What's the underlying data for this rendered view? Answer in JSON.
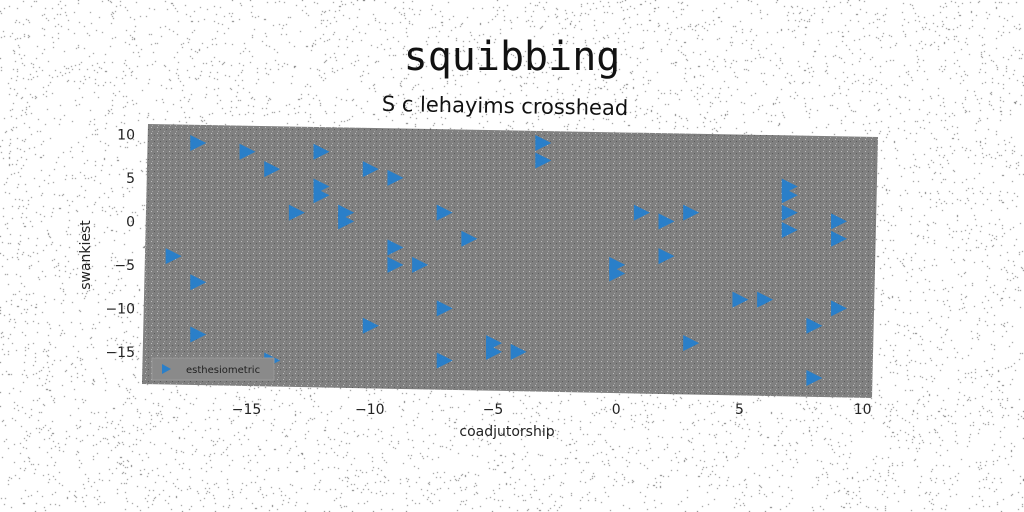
{
  "chart_data": {
    "type": "scatter",
    "title": "squibbing",
    "subtitle": "S c lehayims crosshead",
    "xlabel": "coadjutorship",
    "ylabel": "swankiest",
    "xlim": [
      -19,
      10.5
    ],
    "ylim": [
      -19.5,
      10.5
    ],
    "xticks": [
      -15,
      -10,
      -5,
      0,
      5,
      10
    ],
    "yticks": [
      10,
      5,
      0,
      -5,
      -10,
      -15
    ],
    "grid": false,
    "legend_position": "lower-left",
    "marker": "triangle-right",
    "series": [
      {
        "name": "esthesiometric",
        "color": "#2a7fc9",
        "points": [
          [
            -17,
            9
          ],
          [
            -15,
            8
          ],
          [
            -14,
            6
          ],
          [
            -12,
            8
          ],
          [
            -12,
            4
          ],
          [
            -12,
            3
          ],
          [
            -10,
            6
          ],
          [
            -9,
            5
          ],
          [
            -13,
            1
          ],
          [
            -11,
            0
          ],
          [
            -11,
            1
          ],
          [
            -7,
            1
          ],
          [
            -6,
            -2
          ],
          [
            -9,
            -3
          ],
          [
            -9,
            -5
          ],
          [
            -8,
            -5
          ],
          [
            -18,
            -4
          ],
          [
            -17,
            -7
          ],
          [
            -17,
            -13
          ],
          [
            -14,
            -16
          ],
          [
            -15,
            -17
          ],
          [
            -10,
            -12
          ],
          [
            -7,
            -10
          ],
          [
            -7,
            -16
          ],
          [
            -5,
            -15
          ],
          [
            -5,
            -14
          ],
          [
            -4,
            -15
          ],
          [
            -3,
            9
          ],
          [
            -3,
            7
          ],
          [
            0,
            -5
          ],
          [
            0,
            -6
          ],
          [
            1,
            1
          ],
          [
            2,
            0
          ],
          [
            2,
            -4
          ],
          [
            3,
            1
          ],
          [
            3,
            -14
          ],
          [
            5,
            -9
          ],
          [
            6,
            -9
          ],
          [
            7,
            4
          ],
          [
            7,
            3
          ],
          [
            7,
            1
          ],
          [
            7,
            -1
          ],
          [
            8,
            -12
          ],
          [
            8,
            -18
          ],
          [
            9,
            0
          ],
          [
            9,
            -2
          ],
          [
            9,
            -10
          ]
        ]
      }
    ]
  }
}
